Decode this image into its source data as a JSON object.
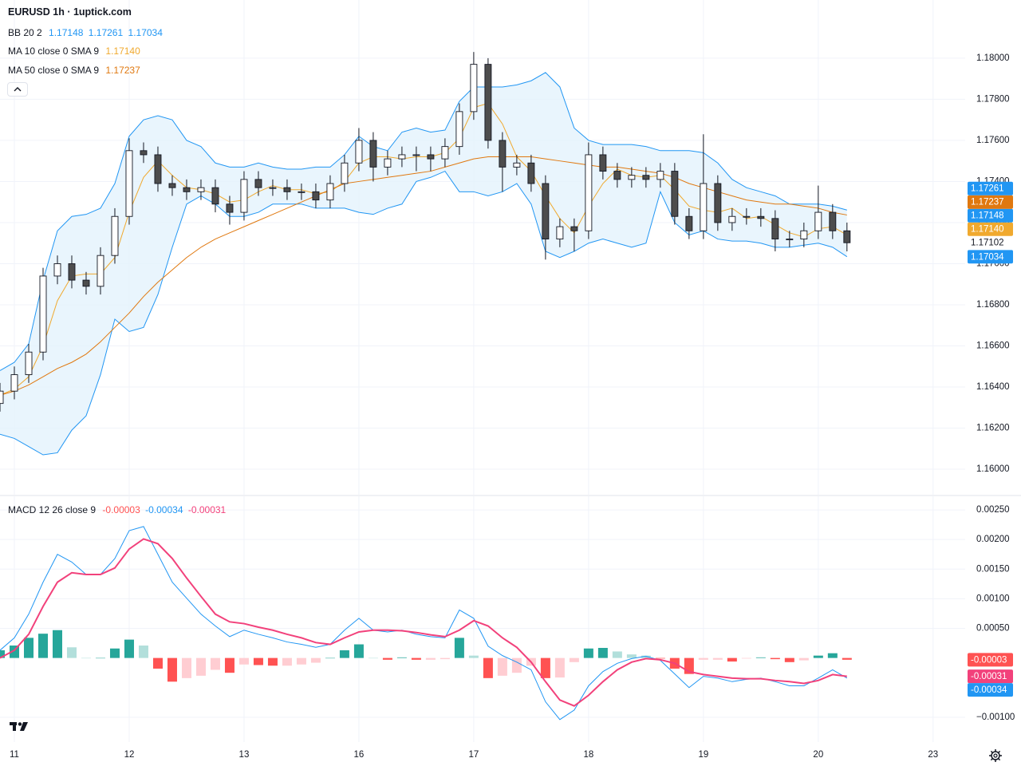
{
  "chart_data": [
    {
      "type": "candlestick",
      "title": "EURUSD 1h · 1uptick.com",
      "decimals": 5,
      "x": [
        -3,
        0,
        3,
        6,
        9,
        12,
        15,
        18,
        21,
        24,
        27,
        30,
        33,
        36,
        39,
        42,
        45,
        48,
        51,
        54,
        57,
        60,
        63,
        66,
        69,
        72,
        75,
        78,
        81,
        84,
        87,
        90,
        93,
        96,
        99,
        102,
        105,
        108,
        111,
        114,
        117,
        120,
        123,
        126,
        129,
        132,
        135,
        138,
        141,
        144,
        147,
        150,
        153,
        156,
        159,
        162,
        165,
        168,
        171,
        174
      ],
      "open": [
        1.1632,
        1.1638,
        1.1646,
        1.1657,
        1.1694,
        1.17,
        1.1692,
        1.1689,
        1.1704,
        1.1723,
        1.1755,
        1.1753,
        1.1739,
        1.1737,
        1.1735,
        1.1737,
        1.1729,
        1.1725,
        1.1741,
        1.1737,
        1.1737,
        1.1735,
        1.1735,
        1.1731,
        1.1739,
        1.1749,
        1.176,
        1.1747,
        1.1751,
        1.1753,
        1.1753,
        1.1751,
        1.1757,
        1.1774,
        1.1797,
        1.176,
        1.1747,
        1.1749,
        1.1739,
        1.1712,
        1.1718,
        1.1716,
        1.1753,
        1.1745,
        1.1741,
        1.1743,
        1.1741,
        1.1745,
        1.1723,
        1.1716,
        1.1739,
        1.172,
        1.1723,
        1.1723,
        1.1722,
        1.1712,
        1.1712,
        1.1716,
        1.1725,
        1.1716
      ],
      "high": [
        1.1642,
        1.165,
        1.1661,
        1.1698,
        1.1704,
        1.1704,
        1.1696,
        1.1708,
        1.1727,
        1.1761,
        1.1759,
        1.1757,
        1.1743,
        1.1741,
        1.1741,
        1.1741,
        1.1733,
        1.1745,
        1.1745,
        1.1741,
        1.1741,
        1.1739,
        1.1739,
        1.1743,
        1.1753,
        1.1766,
        1.1764,
        1.1755,
        1.1757,
        1.1757,
        1.1757,
        1.1761,
        1.1778,
        1.1803,
        1.18,
        1.1764,
        1.1753,
        1.1753,
        1.1743,
        1.1722,
        1.1722,
        1.1759,
        1.1757,
        1.1749,
        1.1747,
        1.1747,
        1.1749,
        1.1749,
        1.1727,
        1.1763,
        1.1743,
        1.1727,
        1.1727,
        1.1727,
        1.1726,
        1.1716,
        1.172,
        1.1738,
        1.1729,
        1.172
      ],
      "low": [
        1.1628,
        1.1634,
        1.1642,
        1.1653,
        1.169,
        1.1688,
        1.1685,
        1.1685,
        1.17,
        1.1719,
        1.1749,
        1.1735,
        1.1733,
        1.1731,
        1.1731,
        1.1725,
        1.1719,
        1.1721,
        1.1733,
        1.1733,
        1.1731,
        1.1731,
        1.1727,
        1.1727,
        1.1735,
        1.1745,
        1.174,
        1.1743,
        1.1747,
        1.1745,
        1.1745,
        1.1747,
        1.1753,
        1.177,
        1.1756,
        1.1735,
        1.1743,
        1.1735,
        1.1702,
        1.1708,
        1.1706,
        1.1712,
        1.1741,
        1.1737,
        1.1737,
        1.1737,
        1.1737,
        1.1719,
        1.1712,
        1.1712,
        1.1716,
        1.1716,
        1.1719,
        1.1718,
        1.1706,
        1.1708,
        1.1708,
        1.1712,
        1.1712,
        1.1706
      ],
      "close": [
        1.1638,
        1.1646,
        1.1657,
        1.1694,
        1.17,
        1.1692,
        1.1689,
        1.1704,
        1.1723,
        1.1755,
        1.1753,
        1.1739,
        1.1737,
        1.1735,
        1.1737,
        1.1729,
        1.1725,
        1.1741,
        1.1737,
        1.1737,
        1.1735,
        1.1735,
        1.1731,
        1.1739,
        1.1749,
        1.176,
        1.1747,
        1.1751,
        1.1753,
        1.1753,
        1.1751,
        1.1757,
        1.1774,
        1.1797,
        1.176,
        1.1747,
        1.1749,
        1.1739,
        1.1712,
        1.1718,
        1.1716,
        1.1753,
        1.1745,
        1.1741,
        1.1743,
        1.1741,
        1.1745,
        1.1723,
        1.1716,
        1.1739,
        1.172,
        1.1723,
        1.1723,
        1.1722,
        1.1712,
        1.1712,
        1.1716,
        1.1725,
        1.1716,
        1.17102
      ],
      "up_color": "#ffffff",
      "down_color": "#4d4d4d",
      "wick_color": "#131722",
      "bb": {
        "label": "BB 20 2",
        "color": "#2196f3",
        "fill": "#e3f2fd",
        "basis": [
          1.1633,
          1.1634,
          1.1636,
          1.165,
          1.1662,
          1.1671,
          1.1675,
          1.1687,
          1.1706,
          1.1715,
          1.172,
          1.1729,
          1.1739,
          1.1745,
          1.1745,
          1.1739,
          1.1735,
          1.1735,
          1.1737,
          1.1738,
          1.1738,
          1.1738,
          1.1737,
          1.1737,
          1.174,
          1.1744,
          1.1741,
          1.1741,
          1.1747,
          1.1753,
          1.1753,
          1.1755,
          1.1757,
          1.1761,
          1.176,
          1.1761,
          1.1763,
          1.1759,
          1.175,
          1.1745,
          1.1736,
          1.1735,
          1.1735,
          1.1734,
          1.1733,
          1.1734,
          1.1745,
          1.1738,
          1.1735,
          1.1735,
          1.1731,
          1.1726,
          1.1724,
          1.1723,
          1.1721,
          1.1719,
          1.1719,
          1.172,
          1.1718,
          1.17148
        ],
        "upper": [
          1.1648,
          1.1652,
          1.1661,
          1.1692,
          1.1716,
          1.1723,
          1.1724,
          1.1727,
          1.1739,
          1.1762,
          1.177,
          1.1772,
          1.177,
          1.176,
          1.1757,
          1.1749,
          1.1747,
          1.1747,
          1.1749,
          1.1747,
          1.1746,
          1.1746,
          1.1747,
          1.1747,
          1.1753,
          1.1762,
          1.1757,
          1.1755,
          1.1764,
          1.1766,
          1.1764,
          1.1765,
          1.1779,
          1.1786,
          1.1786,
          1.1786,
          1.1787,
          1.1789,
          1.1793,
          1.1786,
          1.1766,
          1.176,
          1.1758,
          1.1758,
          1.1758,
          1.1757,
          1.1755,
          1.1755,
          1.1755,
          1.1754,
          1.1749,
          1.1741,
          1.1737,
          1.1735,
          1.1733,
          1.1729,
          1.1729,
          1.1729,
          1.1728,
          1.17261
        ],
        "lower": [
          1.1617,
          1.1615,
          1.1611,
          1.1607,
          1.1608,
          1.1619,
          1.1626,
          1.1646,
          1.1673,
          1.1667,
          1.1669,
          1.1685,
          1.1708,
          1.1729,
          1.1733,
          1.1729,
          1.1723,
          1.1723,
          1.1725,
          1.1729,
          1.1729,
          1.1729,
          1.1727,
          1.1727,
          1.1727,
          1.1725,
          1.1724,
          1.1727,
          1.1729,
          1.174,
          1.1742,
          1.1745,
          1.1735,
          1.1735,
          1.1733,
          1.1735,
          1.1739,
          1.1729,
          1.1706,
          1.1703,
          1.1706,
          1.171,
          1.1712,
          1.171,
          1.1708,
          1.171,
          1.1735,
          1.172,
          1.1714,
          1.1716,
          1.1712,
          1.1711,
          1.1711,
          1.171,
          1.1708,
          1.1708,
          1.1709,
          1.171,
          1.1708,
          1.17034
        ]
      },
      "ma": [
        {
          "label": "MA 10 close 0 SMA 9",
          "color": "#f0a92e",
          "values": [
            1.1636,
            1.1639,
            1.1645,
            1.166,
            1.1682,
            1.1694,
            1.1695,
            1.1695,
            1.1703,
            1.1725,
            1.1742,
            1.175,
            1.1743,
            1.1737,
            1.1736,
            1.1734,
            1.173,
            1.1731,
            1.1735,
            1.1738,
            1.1736,
            1.1736,
            1.1734,
            1.1735,
            1.174,
            1.1749,
            1.1752,
            1.1752,
            1.1751,
            1.1752,
            1.1752,
            1.1754,
            1.1761,
            1.1776,
            1.1778,
            1.1768,
            1.1752,
            1.1745,
            1.1733,
            1.1722,
            1.1715,
            1.1728,
            1.1739,
            1.1746,
            1.1743,
            1.1742,
            1.1743,
            1.1736,
            1.1728,
            1.1726,
            1.1725,
            1.1727,
            1.1722,
            1.1723,
            1.1719,
            1.1715,
            1.1713,
            1.1717,
            1.1718,
            1.1714
          ]
        },
        {
          "label": "MA 50 close 0 SMA 9",
          "color": "#e0780f",
          "values": [
            1.1636,
            1.1638,
            1.1641,
            1.1645,
            1.1649,
            1.1652,
            1.1656,
            1.1662,
            1.1669,
            1.1676,
            1.1684,
            1.1691,
            1.1697,
            1.1703,
            1.1708,
            1.1712,
            1.1715,
            1.1718,
            1.1721,
            1.1724,
            1.1727,
            1.173,
            1.1733,
            1.1736,
            1.1739,
            1.174,
            1.1741,
            1.1742,
            1.1743,
            1.1744,
            1.1745,
            1.1747,
            1.1749,
            1.1751,
            1.1752,
            1.1752,
            1.1752,
            1.1752,
            1.1751,
            1.175,
            1.1749,
            1.1748,
            1.1747,
            1.1747,
            1.1746,
            1.1745,
            1.1744,
            1.1742,
            1.1739,
            1.1737,
            1.1735,
            1.1733,
            1.1731,
            1.173,
            1.1729,
            1.1729,
            1.1728,
            1.1727,
            1.1725,
            1.17237
          ]
        }
      ],
      "xlim": [
        -3,
        198.7
      ],
      "ylim": [
        1.15876,
        1.18283
      ],
      "xticks": [
        {
          "value": 0,
          "label": "11"
        },
        {
          "value": 24,
          "label": "12"
        },
        {
          "value": 48,
          "label": "13"
        },
        {
          "value": 72,
          "label": "16"
        },
        {
          "value": 96,
          "label": "17"
        },
        {
          "value": 120,
          "label": "18"
        },
        {
          "value": 144,
          "label": "19"
        },
        {
          "value": 168,
          "label": "20"
        },
        {
          "value": 192,
          "label": "23"
        }
      ],
      "yticks": [
        {
          "value": 1.16,
          "label": "1.16000"
        },
        {
          "value": 1.162,
          "label": "1.16200"
        },
        {
          "value": 1.164,
          "label": "1.16400"
        },
        {
          "value": 1.166,
          "label": "1.16600"
        },
        {
          "value": 1.168,
          "label": "1.16800"
        },
        {
          "value": 1.17,
          "label": "1.17000"
        },
        {
          "value": 1.172,
          "label": "1.17200"
        },
        {
          "value": 1.174,
          "label": "1.17400"
        },
        {
          "value": 1.176,
          "label": "1.17600"
        },
        {
          "value": 1.178,
          "label": "1.17800"
        },
        {
          "value": 1.18,
          "label": "1.18000"
        }
      ],
      "grid": true
    },
    {
      "type": "macd",
      "label": "MACD 12 26 close 9",
      "decimals": 5,
      "macd": {
        "color": "#2196f3",
        "values": [
          0.00013,
          0.00034,
          0.00074,
          0.00128,
          0.00175,
          0.00162,
          0.00141,
          0.00141,
          0.00168,
          0.00215,
          0.00222,
          0.00175,
          0.00128,
          0.00101,
          0.00074,
          0.00054,
          0.00036,
          0.00047,
          0.0004,
          0.00034,
          0.00027,
          0.00023,
          0.00018,
          0.00023,
          0.00047,
          0.00067,
          0.00047,
          0.00044,
          0.00047,
          0.0004,
          0.00036,
          0.00034,
          0.00081,
          0.00067,
          0.0002,
          4e-05,
          -7e-05,
          -0.0002,
          -0.00074,
          -0.00104,
          -0.00088,
          -0.00047,
          -0.00023,
          -9e-05,
          -1e-05,
          3e-05,
          -4e-05,
          -0.00027,
          -0.0005,
          -0.00031,
          -0.00034,
          -0.0004,
          -0.00036,
          -0.00034,
          -0.0004,
          -0.00047,
          -0.00047,
          -0.00034,
          -0.0002,
          -0.00034
        ]
      },
      "signal": {
        "color": "#f2417b",
        "values": [
          0,
          0.00013,
          0.0004,
          0.00087,
          0.00128,
          0.00144,
          0.00141,
          0.00141,
          0.00152,
          0.00184,
          0.00201,
          0.00193,
          0.00168,
          0.00135,
          0.00104,
          0.00074,
          0.00061,
          0.00058,
          0.00052,
          0.00047,
          0.0004,
          0.00034,
          0.00026,
          0.00023,
          0.00034,
          0.00044,
          0.00047,
          0.00047,
          0.00046,
          0.00043,
          0.00039,
          0.00036,
          0.00047,
          0.00063,
          0.00054,
          0.00034,
          0.00018,
          -7e-05,
          -0.0004,
          -0.00071,
          -0.00081,
          -0.00063,
          -0.0004,
          -0.0002,
          -7e-05,
          -1e-05,
          -3e-05,
          -9e-05,
          -0.00023,
          -0.00028,
          -0.00031,
          -0.00034,
          -0.00035,
          -0.00035,
          -0.00038,
          -0.0004,
          -0.00043,
          -0.00038,
          -0.00028,
          -0.00031
        ]
      },
      "histogram": {
        "colors": [
          "#26a69a",
          "#b2dfdb",
          "#ff5252",
          "#ffcdd2"
        ],
        "values": [
          0.00013,
          0.00021,
          0.00034,
          0.00041,
          0.00047,
          0.00018,
          0,
          0,
          0.00016,
          0.00031,
          0.00021,
          -0.00018,
          -0.0004,
          -0.00034,
          -0.0003,
          -0.0002,
          -0.00025,
          -0.00011,
          -0.00012,
          -0.00013,
          -0.00013,
          -0.00011,
          -8e-05,
          0,
          0.00013,
          0.00023,
          0,
          -3e-05,
          1e-05,
          -3e-05,
          -3e-05,
          -2e-05,
          0.00034,
          4e-05,
          -0.00034,
          -0.0003,
          -0.00025,
          -0.00013,
          -0.00034,
          -0.00033,
          -7e-05,
          0.00016,
          0.00017,
          0.00011,
          6e-05,
          4e-05,
          -1e-05,
          -0.00018,
          -0.00027,
          -3e-05,
          -3e-05,
          -6e-05,
          -1e-05,
          1e-05,
          -2e-05,
          -7e-05,
          -4e-05,
          4e-05,
          8e-05,
          -3e-05
        ]
      },
      "ylim": [
        -0.00142,
        0.00273
      ],
      "yticks": [
        {
          "value": 0.0025,
          "label": "0.00250"
        },
        {
          "value": 0.002,
          "label": "0.00200"
        },
        {
          "value": 0.0015,
          "label": "0.00150"
        },
        {
          "value": 0.001,
          "label": "0.00100"
        },
        {
          "value": 0.0005,
          "label": "0.00050"
        },
        {
          "value": -0.001,
          "label": "−0.00100"
        }
      ],
      "grid": true
    }
  ]
}
